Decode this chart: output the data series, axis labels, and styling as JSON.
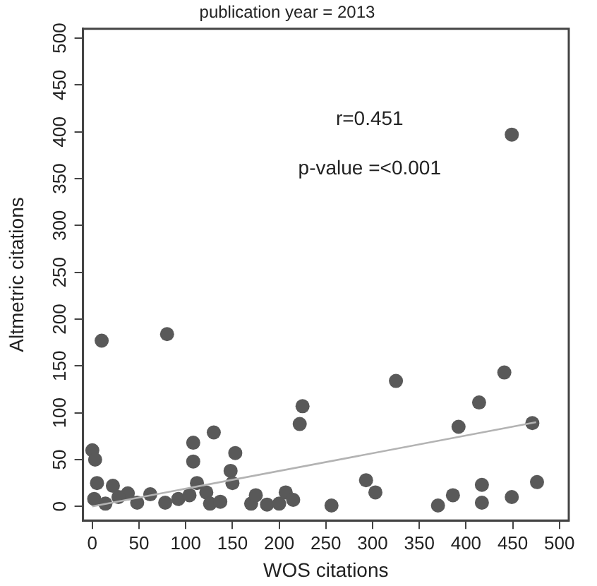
{
  "chart_data": {
    "type": "scatter",
    "title": "publication year = 2013",
    "xlabel": "WOS citations",
    "ylabel": "Altmetric citations",
    "xlim": [
      -10,
      510
    ],
    "ylim": [
      -15,
      510
    ],
    "xticks": [
      0,
      50,
      100,
      150,
      200,
      250,
      300,
      350,
      400,
      450,
      500
    ],
    "yticks": [
      0,
      50,
      100,
      150,
      200,
      250,
      300,
      350,
      400,
      450,
      500
    ],
    "grid": false,
    "legend": false,
    "annotations": [
      "r=0.451",
      "p-value =<0.001"
    ],
    "series": [
      {
        "type": "scatter",
        "marker": "circle",
        "color": "#595959",
        "x": [
          10,
          80,
          0,
          3,
          5,
          22,
          38,
          2,
          14,
          28,
          48,
          62,
          78,
          92,
          104,
          108,
          108,
          112,
          122,
          126,
          137,
          130,
          148,
          150,
          153,
          170,
          175,
          187,
          200,
          207,
          215,
          222,
          225,
          256,
          293,
          303,
          325,
          370,
          386,
          392,
          414,
          417,
          417,
          441,
          449,
          449,
          471,
          476
        ],
        "values": [
          177,
          184,
          60,
          50,
          25,
          22,
          14,
          8,
          3,
          10,
          4,
          13,
          4,
          8,
          12,
          68,
          48,
          25,
          15,
          3,
          5,
          79,
          38,
          25,
          57,
          3,
          12,
          2,
          3,
          15,
          7,
          88,
          107,
          1,
          28,
          15,
          134,
          1,
          12,
          85,
          111,
          23,
          4,
          143,
          397,
          10,
          89,
          26
        ]
      },
      {
        "type": "line",
        "marker": "none",
        "color": "#b3b3b3",
        "x": [
          0,
          475
        ],
        "values": [
          0,
          90
        ]
      }
    ]
  }
}
